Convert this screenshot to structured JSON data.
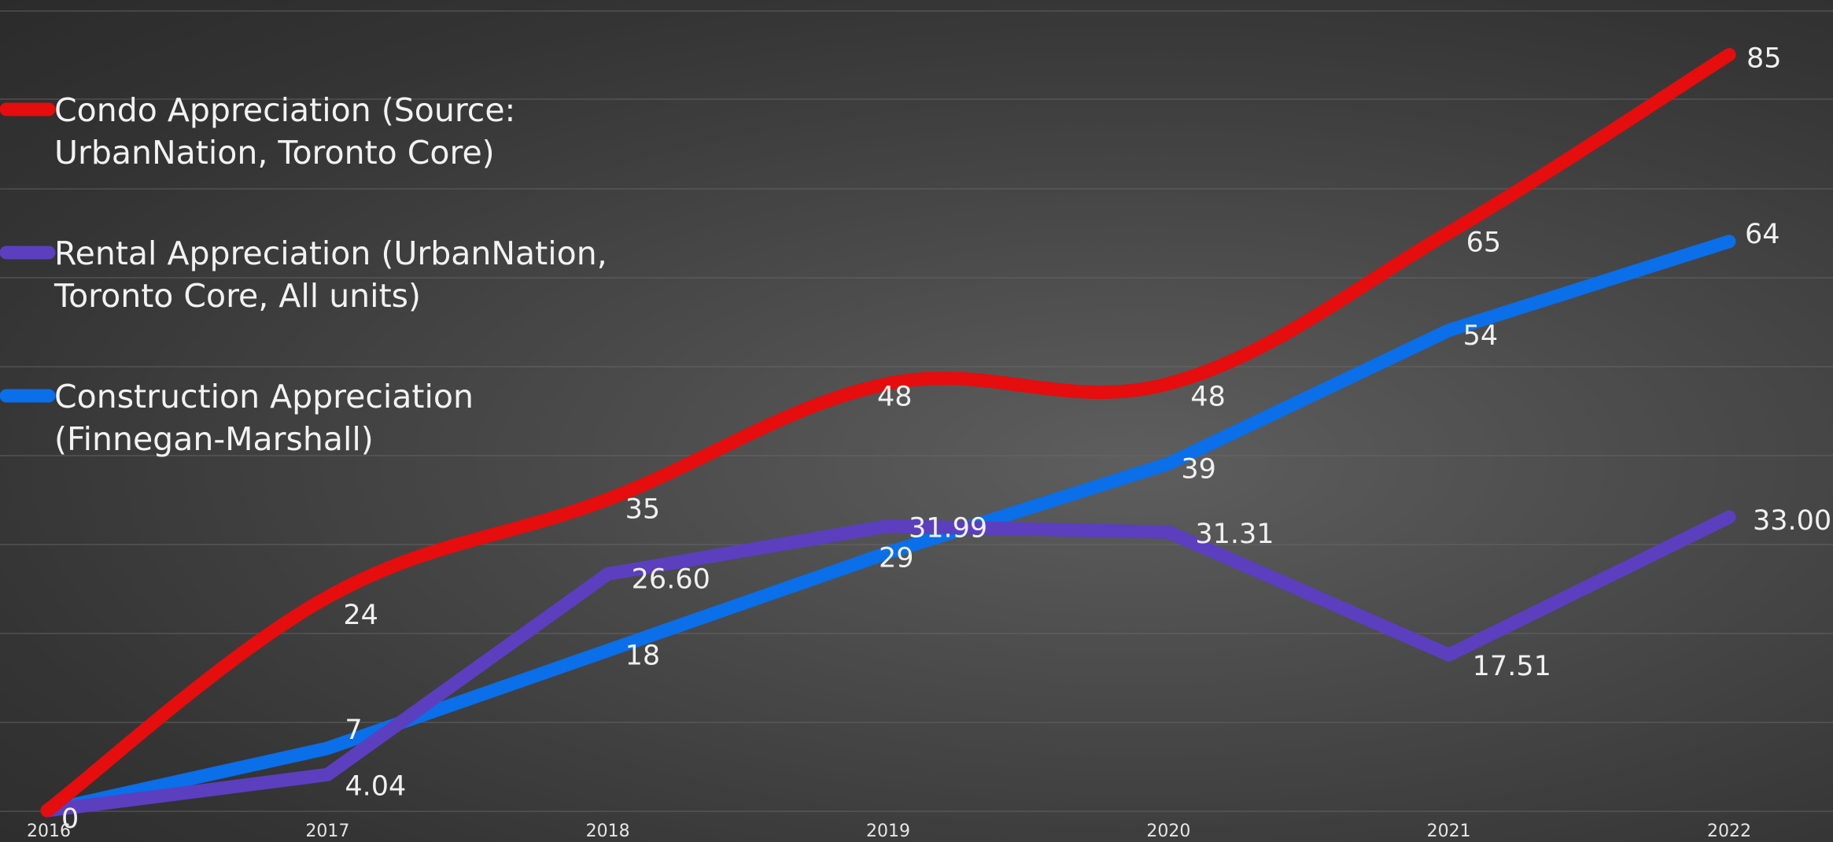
{
  "chart_data": {
    "type": "line",
    "x": [
      "2016",
      "2017",
      "2018",
      "2019",
      "2020",
      "2021",
      "2022"
    ],
    "ylim": [
      0,
      90
    ],
    "grid": true,
    "legend_position": "top-left",
    "series": [
      {
        "name": "Construction Appreciation (Finnegan-Marshall)",
        "color": "#0a6fe8",
        "values": [
          0,
          7,
          18,
          29,
          39,
          54,
          64
        ],
        "labels": [
          "0",
          "7",
          "18",
          "29",
          "39",
          "54",
          "64"
        ],
        "smooth": false
      },
      {
        "name": "Rental Appreciation (UrbanNation, Toronto Core, All units)",
        "color": "#5b3fbf",
        "values": [
          0,
          4.04,
          26.6,
          31.99,
          31.31,
          17.51,
          33.0
        ],
        "labels": [
          "",
          "4.04",
          "26.60",
          "31.99",
          "31.31",
          "17.51",
          "33.00"
        ],
        "smooth": false
      },
      {
        "name": "Condo Appreciation (Source: UrbanNation, Toronto Core)",
        "color": "#e50d0d",
        "values": [
          0,
          24,
          35,
          48,
          48,
          65,
          85
        ],
        "labels": [
          "",
          "24",
          "35",
          "48",
          "48",
          "65",
          "85"
        ],
        "smooth": true
      }
    ],
    "legend": [
      {
        "series": 2,
        "lines": [
          "Condo Appreciation (Source:",
          "UrbanNation, Toronto Core)"
        ]
      },
      {
        "series": 1,
        "lines": [
          "Rental Appreciation (UrbanNation,",
          "Toronto Core, All units)"
        ]
      },
      {
        "series": 0,
        "lines": [
          "Construction Appreciation",
          "(Finnegan-Marshall)"
        ]
      }
    ]
  }
}
